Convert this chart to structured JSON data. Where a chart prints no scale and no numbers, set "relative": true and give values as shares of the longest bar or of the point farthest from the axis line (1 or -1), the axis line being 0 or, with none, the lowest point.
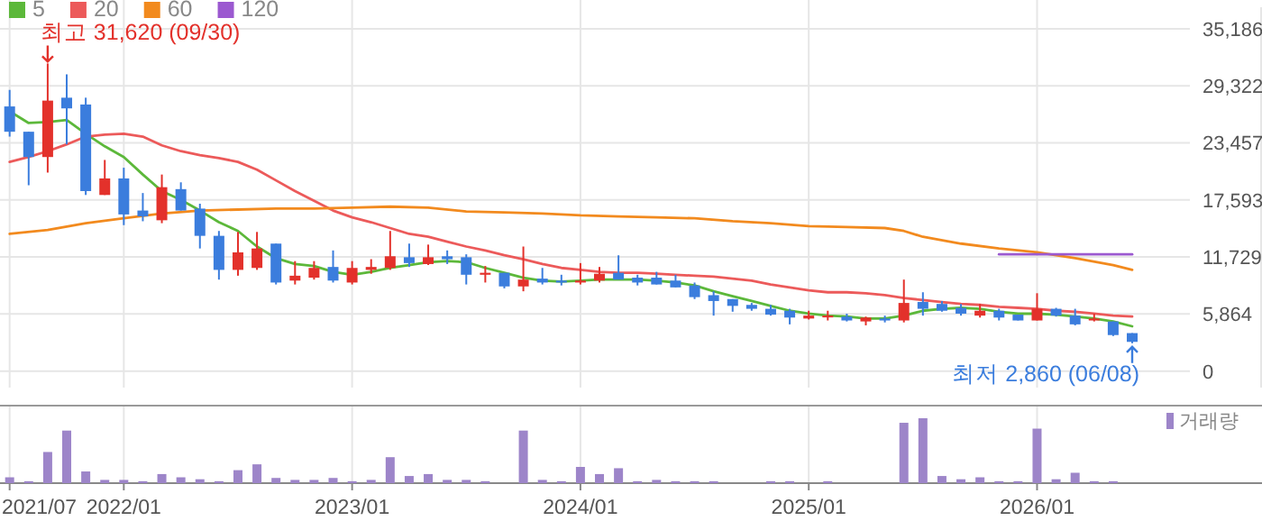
{
  "chart_data": [
    {
      "type": "candlestick",
      "x": [
        "2021-07",
        "2021-08",
        "2021-09",
        "2021-10",
        "2021-11",
        "2021-12",
        "2022-01",
        "2022-02",
        "2022-03",
        "2022-04",
        "2022-05",
        "2022-06",
        "2022-07",
        "2022-08",
        "2022-09",
        "2022-10",
        "2022-11",
        "2022-12",
        "2023-01",
        "2023-02",
        "2023-03",
        "2023-04",
        "2023-05",
        "2023-06",
        "2023-07",
        "2023-08",
        "2023-09",
        "2023-10",
        "2023-11",
        "2023-12",
        "2024-01",
        "2024-02",
        "2024-03",
        "2024-04",
        "2024-05",
        "2024-06",
        "2024-07",
        "2024-08",
        "2024-09",
        "2024-10",
        "2024-11",
        "2024-12",
        "2025-01",
        "2025-02",
        "2025-03",
        "2025-04",
        "2025-05",
        "2025-06",
        "2025-07",
        "2025-08",
        "2025-09",
        "2025-10",
        "2025-11",
        "2025-12",
        "2026-01",
        "2026-02",
        "2026-03",
        "2026-04",
        "2026-05",
        "2026-06"
      ],
      "ohlc": [
        [
          27200,
          28900,
          24100,
          24600
        ],
        [
          24600,
          24600,
          19100,
          22000
        ],
        [
          22000,
          31620,
          20400,
          27800
        ],
        [
          28100,
          30500,
          23300,
          27000
        ],
        [
          27400,
          28100,
          18100,
          18500
        ],
        [
          18100,
          21700,
          18100,
          19800
        ],
        [
          19800,
          20900,
          15000,
          16100
        ],
        [
          16500,
          18300,
          15400,
          15900
        ],
        [
          15500,
          20200,
          15200,
          18900
        ],
        [
          18700,
          19400,
          16500,
          16500
        ],
        [
          16700,
          17200,
          12600,
          13900
        ],
        [
          13900,
          14400,
          9400,
          10400
        ],
        [
          10400,
          14300,
          9800,
          12200
        ],
        [
          10600,
          14300,
          10400,
          12600
        ],
        [
          13100,
          13100,
          8900,
          9100
        ],
        [
          9300,
          11300,
          8900,
          9800
        ],
        [
          9600,
          11300,
          9400,
          10600
        ],
        [
          10700,
          12400,
          9100,
          9300
        ],
        [
          9100,
          11300,
          8900,
          10600
        ],
        [
          10400,
          11500,
          10000,
          10700
        ],
        [
          10600,
          14400,
          10400,
          11800
        ],
        [
          11700,
          13100,
          10700,
          11100
        ],
        [
          11000,
          13000,
          10900,
          11700
        ],
        [
          11800,
          12400,
          11000,
          11500
        ],
        [
          11700,
          12000,
          8900,
          9900
        ],
        [
          9900,
          10800,
          9100,
          10100
        ],
        [
          10100,
          10100,
          8500,
          8700
        ],
        [
          8700,
          12800,
          8200,
          9400
        ],
        [
          9500,
          10600,
          8900,
          9100
        ],
        [
          9300,
          9900,
          8800,
          9100
        ],
        [
          9100,
          11100,
          8900,
          9300
        ],
        [
          9300,
          10700,
          9100,
          10000
        ],
        [
          10100,
          11900,
          9400,
          9400
        ],
        [
          9600,
          9900,
          8800,
          9100
        ],
        [
          9600,
          10200,
          8900,
          8900
        ],
        [
          9300,
          9900,
          8600,
          8600
        ],
        [
          8800,
          9100,
          7400,
          7600
        ],
        [
          7800,
          8200,
          5700,
          7200
        ],
        [
          7400,
          7400,
          6100,
          6700
        ],
        [
          6800,
          7000,
          6200,
          6400
        ],
        [
          6400,
          6800,
          5700,
          5800
        ],
        [
          6200,
          6400,
          4800,
          5500
        ],
        [
          5400,
          6200,
          5300,
          5700
        ],
        [
          5600,
          6200,
          5200,
          5700
        ],
        [
          5600,
          5900,
          5100,
          5200
        ],
        [
          5100,
          5600,
          4700,
          5500
        ],
        [
          5400,
          5700,
          5000,
          5200
        ],
        [
          5200,
          9400,
          5000,
          7000
        ],
        [
          7100,
          8100,
          5700,
          6400
        ],
        [
          6900,
          7200,
          6100,
          6200
        ],
        [
          6500,
          6900,
          5700,
          5900
        ],
        [
          5700,
          6900,
          5500,
          6200
        ],
        [
          6200,
          6400,
          5200,
          5500
        ],
        [
          5800,
          5800,
          5200,
          5200
        ],
        [
          5200,
          8000,
          5200,
          6400
        ],
        [
          6400,
          6500,
          5600,
          5700
        ],
        [
          5700,
          6400,
          4700,
          4800
        ],
        [
          5200,
          5900,
          5100,
          5400
        ],
        [
          5100,
          5100,
          3600,
          3700
        ],
        [
          3900,
          3900,
          2860,
          3000
        ]
      ],
      "colors": [
        "#3b7ddd",
        "#3b7ddd",
        "#e3312b",
        "#3b7ddd",
        "#3b7ddd",
        "#e3312b",
        "#3b7ddd",
        "#3b7ddd",
        "#e3312b",
        "#3b7ddd",
        "#3b7ddd",
        "#3b7ddd",
        "#e3312b",
        "#e3312b",
        "#3b7ddd",
        "#e3312b",
        "#e3312b",
        "#3b7ddd",
        "#e3312b",
        "#e3312b",
        "#e3312b",
        "#3b7ddd",
        "#e3312b",
        "#3b7ddd",
        "#3b7ddd",
        "#e3312b",
        "#3b7ddd",
        "#e3312b",
        "#3b7ddd",
        "#3b7ddd",
        "#e3312b",
        "#e3312b",
        "#3b7ddd",
        "#3b7ddd",
        "#3b7ddd",
        "#3b7ddd",
        "#3b7ddd",
        "#3b7ddd",
        "#3b7ddd",
        "#3b7ddd",
        "#3b7ddd",
        "#3b7ddd",
        "#e3312b",
        "#e3312b",
        "#3b7ddd",
        "#e3312b",
        "#3b7ddd",
        "#e3312b",
        "#3b7ddd",
        "#3b7ddd",
        "#3b7ddd",
        "#e3312b",
        "#3b7ddd",
        "#3b7ddd",
        "#e3312b",
        "#3b7ddd",
        "#3b7ddd",
        "#e3312b",
        "#3b7ddd",
        "#3b7ddd"
      ],
      "series": [
        {
          "name": "5",
          "type": "line",
          "color": "#5cb83a",
          "values": [
            26700,
            25500,
            25600,
            25800,
            24400,
            23100,
            22000,
            20200,
            18500,
            17600,
            16500,
            15300,
            14400,
            12800,
            11600,
            11000,
            10800,
            10200,
            9900,
            10200,
            10600,
            10900,
            11200,
            11300,
            11200,
            10600,
            10100,
            9600,
            9300,
            9200,
            9300,
            9400,
            9400,
            9400,
            9300,
            9100,
            8800,
            8200,
            7700,
            7200,
            6700,
            6200,
            5900,
            5700,
            5600,
            5400,
            5400,
            5700,
            6200,
            6400,
            6500,
            6400,
            6100,
            5900,
            5900,
            5800,
            5600,
            5400,
            5100,
            4600
          ]
        },
        {
          "name": "20",
          "type": "line",
          "color": "#ec5a5a",
          "values": [
            21500,
            22000,
            22600,
            23300,
            24100,
            24300,
            24400,
            24100,
            23200,
            22600,
            22200,
            21900,
            21500,
            20700,
            19600,
            18500,
            17500,
            16500,
            15800,
            15300,
            14700,
            14100,
            13800,
            13300,
            12800,
            12400,
            11900,
            11500,
            11000,
            10600,
            10400,
            10200,
            10100,
            10100,
            10000,
            9900,
            9800,
            9700,
            9500,
            9300,
            8900,
            8600,
            8300,
            8100,
            8100,
            8000,
            7800,
            7500,
            7300,
            7100,
            6900,
            6800,
            6600,
            6500,
            6400,
            6200,
            6100,
            5900,
            5700,
            5600
          ]
        },
        {
          "name": "60",
          "type": "line",
          "color": "#f28a1e",
          "x": [
            "2021-07",
            "2021-09",
            "2021-11",
            "2022-01",
            "2022-03",
            "2022-05",
            "2022-07",
            "2022-09",
            "2022-11",
            "2023-01",
            "2023-03",
            "2023-05",
            "2023-07",
            "2023-09",
            "2023-11",
            "2024-01",
            "2024-03",
            "2024-05",
            "2024-07",
            "2024-09",
            "2024-11",
            "2025-01",
            "2025-03",
            "2025-05",
            "2025-06",
            "2025-07",
            "2025-09",
            "2025-11",
            "2026-01",
            "2026-03",
            "2026-05",
            "2026-06"
          ],
          "values": [
            14100,
            14500,
            15200,
            15700,
            16200,
            16500,
            16600,
            16700,
            16700,
            16800,
            16900,
            16800,
            16400,
            16300,
            16200,
            16000,
            15900,
            15800,
            15700,
            15400,
            15200,
            14900,
            14800,
            14700,
            14400,
            13800,
            13100,
            12600,
            12200,
            11600,
            10900,
            10400
          ]
        },
        {
          "name": "120",
          "type": "line",
          "color": "#9b59d0",
          "x": [
            "2025-11",
            "2026-06"
          ],
          "values": [
            12000,
            12000
          ]
        }
      ],
      "annotations": [
        {
          "text": "최고 31,620 (09/30)",
          "x": "2021-09",
          "y": 31620
        },
        {
          "text": "최저 2,860 (06/08)",
          "x": "2026-06",
          "y": 2860
        }
      ],
      "xlim": [
        "2021-06-16",
        "2026-12-26"
      ],
      "ylim": [
        -1700,
        37400
      ],
      "xticks": [
        {
          "value": "2021-07",
          "label": null
        },
        {
          "value": "2022-01",
          "label": null
        },
        {
          "value": "2023-01",
          "label": null
        },
        {
          "value": "2024-01",
          "label": null
        },
        {
          "value": "2025-01",
          "label": null
        },
        {
          "value": "2026-01",
          "label": null
        }
      ],
      "yticks": [
        0,
        {
          "value": 5864,
          "label": "5,864"
        },
        {
          "value": 11729,
          "label": "11,729"
        },
        {
          "value": 17593,
          "label": "17,593"
        },
        {
          "value": 23457,
          "label": "23,457"
        },
        {
          "value": 29322,
          "label": "29,322"
        },
        {
          "value": 35186,
          "label": "35,186"
        }
      ],
      "grid": true,
      "legend": "top left",
      "tick_labels": "y"
    },
    {
      "type": "bar",
      "relative": true,
      "x": [
        "2021-07",
        "2021-08",
        "2021-09",
        "2021-10",
        "2021-11",
        "2021-12",
        "2022-01",
        "2022-02",
        "2022-03",
        "2022-04",
        "2022-05",
        "2022-06",
        "2022-07",
        "2022-08",
        "2022-09",
        "2022-10",
        "2022-11",
        "2022-12",
        "2023-01",
        "2023-02",
        "2023-03",
        "2023-04",
        "2023-05",
        "2023-06",
        "2023-07",
        "2023-08",
        "2023-09",
        "2023-10",
        "2023-11",
        "2023-12",
        "2024-01",
        "2024-02",
        "2024-03",
        "2024-04",
        "2024-05",
        "2024-06",
        "2024-07",
        "2024-08",
        "2024-09",
        "2024-10",
        "2024-11",
        "2024-12",
        "2025-01",
        "2025-02",
        "2025-03",
        "2025-04",
        "2025-05",
        "2025-06",
        "2025-07",
        "2025-08",
        "2025-09",
        "2025-10",
        "2025-11",
        "2025-12",
        "2026-01",
        "2026-02",
        "2026-03",
        "2026-04",
        "2026-05",
        "2026-06"
      ],
      "series": [
        {
          "name": "거래량",
          "color": "#9d85c9",
          "values": [
            0.09,
            0.03,
            0.48,
            0.81,
            0.18,
            0.05,
            0.05,
            0.03,
            0.14,
            0.09,
            0.06,
            0.03,
            0.2,
            0.29,
            0.08,
            0.05,
            0.05,
            0.08,
            0.03,
            0.05,
            0.4,
            0.11,
            0.14,
            0.05,
            0.05,
            0.03,
            0,
            0.81,
            0.05,
            0.03,
            0.25,
            0.14,
            0.23,
            0.03,
            0.05,
            0.03,
            0.03,
            0.03,
            0,
            0,
            0.03,
            0.03,
            0,
            0.03,
            0,
            0,
            0,
            0.93,
            1,
            0.11,
            0.06,
            0.09,
            0.03,
            0.03,
            0.84,
            0.06,
            0.16,
            0.03,
            0.03,
            0
          ]
        }
      ],
      "xlim": [
        "2021-06-16",
        "2026-12-26"
      ],
      "xticks": [
        {
          "value": "2021-07",
          "label": "2021/07"
        },
        {
          "value": "2022-01",
          "label": "2022/01"
        },
        {
          "value": "2023-01",
          "label": "2023/01"
        },
        {
          "value": "2024-01",
          "label": "2024/01"
        },
        {
          "value": "2025-01",
          "label": "2025/01"
        },
        {
          "value": "2026-01",
          "label": "2026/01"
        }
      ],
      "grid": "x",
      "legend": "top right",
      "tick_labels": "x"
    }
  ]
}
